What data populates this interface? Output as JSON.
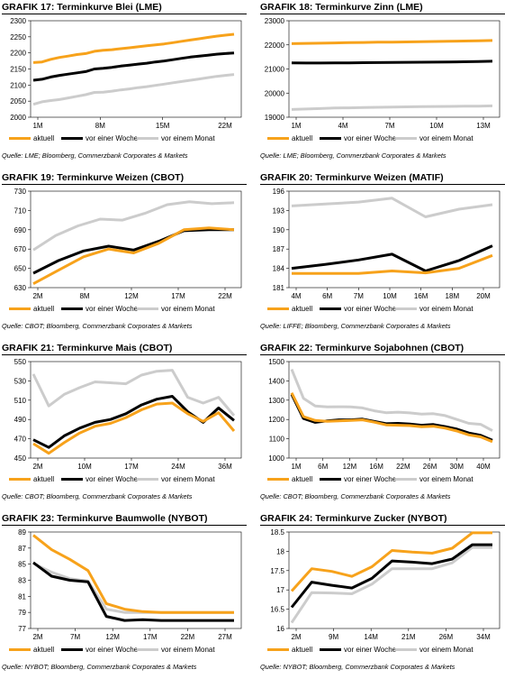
{
  "legend": {
    "actual": "aktuell",
    "week": "vor einer Woche",
    "month": "vor einem Monat"
  },
  "colors": {
    "actual": "#f7a21b",
    "week": "#000000",
    "month": "#cccccc"
  },
  "chart_data": [
    {
      "type": "line",
      "title_prefix": "GRAFIK 17:",
      "title": "Terminkurve Blei (LME)",
      "source": "Quelle: LME; Bloomberg, Commerzbank Corporates & Markets",
      "x_ticks": [
        "1M",
        "8M",
        "15M",
        "22M"
      ],
      "ylim": [
        2000,
        2300
      ],
      "y_ticks": [
        2000,
        2050,
        2100,
        2150,
        2200,
        2250,
        2300
      ],
      "series": [
        {
          "name": "aktuell",
          "values": [
            2170,
            2172,
            2180,
            2186,
            2190,
            2195,
            2198,
            2205,
            2208,
            2210,
            2213,
            2216,
            2219,
            2222,
            2225,
            2228,
            2232,
            2236,
            2240,
            2244,
            2248,
            2252,
            2255,
            2258
          ]
        },
        {
          "name": "vor einer Woche",
          "values": [
            2115,
            2118,
            2125,
            2130,
            2134,
            2138,
            2142,
            2150,
            2152,
            2155,
            2159,
            2162,
            2165,
            2168,
            2172,
            2175,
            2179,
            2183,
            2187,
            2190,
            2193,
            2196,
            2198,
            2200
          ]
        },
        {
          "name": "vor einem Monat",
          "values": [
            2040,
            2048,
            2052,
            2055,
            2060,
            2065,
            2070,
            2077,
            2078,
            2081,
            2085,
            2088,
            2092,
            2095,
            2099,
            2103,
            2107,
            2111,
            2115,
            2119,
            2123,
            2127,
            2130,
            2133
          ]
        }
      ]
    },
    {
      "type": "line",
      "title_prefix": "GRAFIK 18:",
      "title": "Terminkurve Zinn (LME)",
      "source": "Quelle: LME; Bloomberg, Commerzbank Corporates & Markets",
      "x_ticks": [
        "1M",
        "4M",
        "7M",
        "10M",
        "13M"
      ],
      "ylim": [
        19000,
        23000
      ],
      "y_ticks": [
        19000,
        20000,
        21000,
        22000,
        23000
      ],
      "series": [
        {
          "name": "aktuell",
          "values": [
            22050,
            22060,
            22070,
            22080,
            22090,
            22100,
            22110,
            22115,
            22120,
            22130,
            22140,
            22150,
            22160,
            22170,
            22180
          ]
        },
        {
          "name": "vor einer Woche",
          "values": [
            21250,
            21245,
            21245,
            21250,
            21255,
            21260,
            21265,
            21270,
            21275,
            21280,
            21285,
            21290,
            21300,
            21310,
            21320
          ]
        },
        {
          "name": "vor einem Monat",
          "values": [
            19320,
            19340,
            19360,
            19380,
            19390,
            19400,
            19410,
            19420,
            19430,
            19440,
            19445,
            19450,
            19455,
            19460,
            19470
          ]
        }
      ]
    },
    {
      "type": "line",
      "title_prefix": "GRAFIK 19:",
      "title": "Terminkurve Weizen (CBOT)",
      "source": "Quelle: CBOT; Bloomberg, Commerzbank Corporates & Markets",
      "x_ticks": [
        "2M",
        "8M",
        "12M",
        "17M",
        "22M"
      ],
      "ylim": [
        630,
        730
      ],
      "y_ticks": [
        630,
        650,
        670,
        690,
        710,
        730
      ],
      "series": [
        {
          "name": "aktuell",
          "values": [
            634,
            648,
            662,
            670,
            666,
            676,
            690,
            692,
            690
          ]
        },
        {
          "name": "vor einer Woche",
          "values": [
            645,
            658,
            668,
            673,
            669,
            678,
            689,
            690,
            690
          ]
        },
        {
          "name": "vor einem Monat",
          "values": [
            669,
            684,
            694,
            701,
            700,
            707,
            716,
            719,
            717,
            718
          ]
        }
      ]
    },
    {
      "type": "line",
      "title_prefix": "GRAFIK 20:",
      "title": "Terminkurve Weizen (MATIF)",
      "source": "Quelle: LIFFE; Bloomberg, Commerzbank Corporates & Markets",
      "x_ticks": [
        "4M",
        "6M",
        "7M",
        "10M",
        "16M",
        "18M",
        "20M"
      ],
      "ylim": [
        181,
        196
      ],
      "y_ticks": [
        181,
        184,
        187,
        190,
        193,
        196
      ],
      "series": [
        {
          "name": "aktuell",
          "values": [
            183.2,
            183.2,
            183.2,
            183.6,
            183.3,
            184.0,
            186.0
          ]
        },
        {
          "name": "vor einer Woche",
          "values": [
            184.0,
            184.6,
            185.3,
            186.2,
            183.6,
            185.2,
            187.5
          ]
        },
        {
          "name": "vor einem Monat",
          "values": [
            193.7,
            194.0,
            194.3,
            194.9,
            192.0,
            193.2,
            193.9
          ]
        }
      ]
    },
    {
      "type": "line",
      "title_prefix": "GRAFIK 21:",
      "title": "Terminkurve Mais (CBOT)",
      "source": "Quelle: CBOT; Bloomberg, Commerzbank Corporates & Markets",
      "x_ticks": [
        "2M",
        "10M",
        "17M",
        "24M",
        "36M"
      ],
      "ylim": [
        450,
        550
      ],
      "y_ticks": [
        450,
        470,
        490,
        510,
        530,
        550
      ],
      "series": [
        {
          "name": "aktuell",
          "values": [
            465,
            455,
            466,
            476,
            483,
            486,
            492,
            500,
            506,
            507,
            496,
            488,
            497,
            478
          ]
        },
        {
          "name": "vor einer Woche",
          "values": [
            469,
            461,
            473,
            481,
            487,
            490,
            496,
            505,
            511,
            514,
            498,
            487,
            502,
            489
          ]
        },
        {
          "name": "vor einem Monat",
          "values": [
            537,
            504,
            516,
            523,
            529,
            528,
            527,
            536,
            540,
            541,
            513,
            507,
            513,
            494
          ]
        }
      ]
    },
    {
      "type": "line",
      "title_prefix": "GRAFIK 22:",
      "title": "Terminkurve Sojabohnen (CBOT)",
      "source": "Quelle: CBOT; Bloomberg, Commerzbank Corporates & Markets",
      "x_ticks": [
        "1M",
        "6M",
        "12M",
        "16M",
        "22M",
        "26M",
        "30M",
        "40M"
      ],
      "ylim": [
        1000,
        1500
      ],
      "y_ticks": [
        1000,
        1100,
        1200,
        1300,
        1400,
        1500
      ],
      "series": [
        {
          "name": "aktuell",
          "values": [
            1338,
            1215,
            1195,
            1190,
            1193,
            1195,
            1198,
            1186,
            1172,
            1170,
            1168,
            1162,
            1165,
            1155,
            1140,
            1120,
            1110,
            1085
          ]
        },
        {
          "name": "vor einer Woche",
          "values": [
            1330,
            1205,
            1185,
            1193,
            1198,
            1198,
            1202,
            1190,
            1178,
            1180,
            1176,
            1170,
            1174,
            1163,
            1150,
            1130,
            1118,
            1092
          ]
        },
        {
          "name": "vor einem Monat",
          "values": [
            1460,
            1310,
            1270,
            1265,
            1266,
            1265,
            1260,
            1245,
            1235,
            1238,
            1234,
            1228,
            1230,
            1220,
            1200,
            1180,
            1175,
            1142
          ]
        }
      ]
    },
    {
      "type": "line",
      "title_prefix": "GRAFIK 23:",
      "title": "Terminkurve Baumwolle (NYBOT)",
      "source": "Quelle: NYBOT; Bloomberg, Commerzbank Corporates & Markets",
      "x_ticks": [
        "2M",
        "7M",
        "12M",
        "17M",
        "22M",
        "27M"
      ],
      "ylim": [
        77,
        89
      ],
      "y_ticks": [
        77,
        79,
        81,
        83,
        85,
        87,
        89
      ],
      "series": [
        {
          "name": "aktuell",
          "values": [
            88.6,
            86.8,
            85.6,
            84.2,
            80.1,
            79.4,
            79.1,
            79.0,
            79.0,
            79.0,
            79.0,
            79.0
          ]
        },
        {
          "name": "vor einer Woche",
          "values": [
            85.2,
            83.5,
            83.0,
            82.8,
            78.5,
            78.0,
            78.1,
            78.0,
            78.0,
            78.0,
            78.0,
            78.0
          ]
        },
        {
          "name": "vor einem Monat",
          "values": [
            85.1,
            84.0,
            83.2,
            82.9,
            79.4,
            79.0,
            79.0,
            79.0,
            79.0,
            79.0,
            79.0,
            79.0
          ]
        }
      ]
    },
    {
      "type": "line",
      "title_prefix": "GRAFIK 24:",
      "title": "Terminkurve Zucker (NYBOT)",
      "source": "Quelle: NYBOT; Bloomberg, Commerzbank Corporates & Markets",
      "x_ticks": [
        "2M",
        "9M",
        "14M",
        "21M",
        "26M",
        "34M"
      ],
      "ylim": [
        16,
        18.5
      ],
      "y_ticks": [
        16.0,
        16.5,
        17.0,
        17.5,
        18.0,
        18.5
      ],
      "series": [
        {
          "name": "aktuell",
          "values": [
            16.97,
            17.55,
            17.48,
            17.35,
            17.6,
            18.02,
            17.98,
            17.95,
            18.08,
            18.48,
            18.48
          ]
        },
        {
          "name": "vor einer Woche",
          "values": [
            16.55,
            17.2,
            17.12,
            17.05,
            17.3,
            17.75,
            17.72,
            17.68,
            17.8,
            18.17,
            18.17
          ]
        },
        {
          "name": "vor einem Monat",
          "values": [
            16.15,
            16.93,
            16.92,
            16.9,
            17.15,
            17.55,
            17.55,
            17.55,
            17.7,
            18.1,
            18.1
          ]
        }
      ]
    }
  ]
}
